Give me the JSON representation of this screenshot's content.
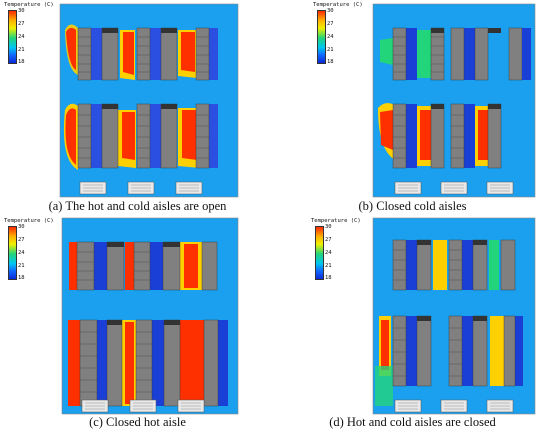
{
  "legend": {
    "title": "Temperature (C)",
    "ticks": [
      "30",
      "27",
      "24",
      "21",
      "18"
    ]
  },
  "panels": [
    {
      "id": "a",
      "caption": "(a) The hot and cold aisles are open",
      "scenario": "open"
    },
    {
      "id": "b",
      "caption": "(b) Closed cold aisles",
      "scenario": "closed-cold"
    },
    {
      "id": "c",
      "caption": "(c) Closed hot aisle",
      "scenario": "closed-hot"
    },
    {
      "id": "d",
      "caption": "(d) Hot and cold aisles are closed",
      "scenario": "closed-both"
    }
  ],
  "colors": {
    "background": "#1aa0ee",
    "rack": "#808080",
    "hot": "#ff2a00",
    "warm": "#ffd000",
    "cold": "#1a3fd6"
  }
}
